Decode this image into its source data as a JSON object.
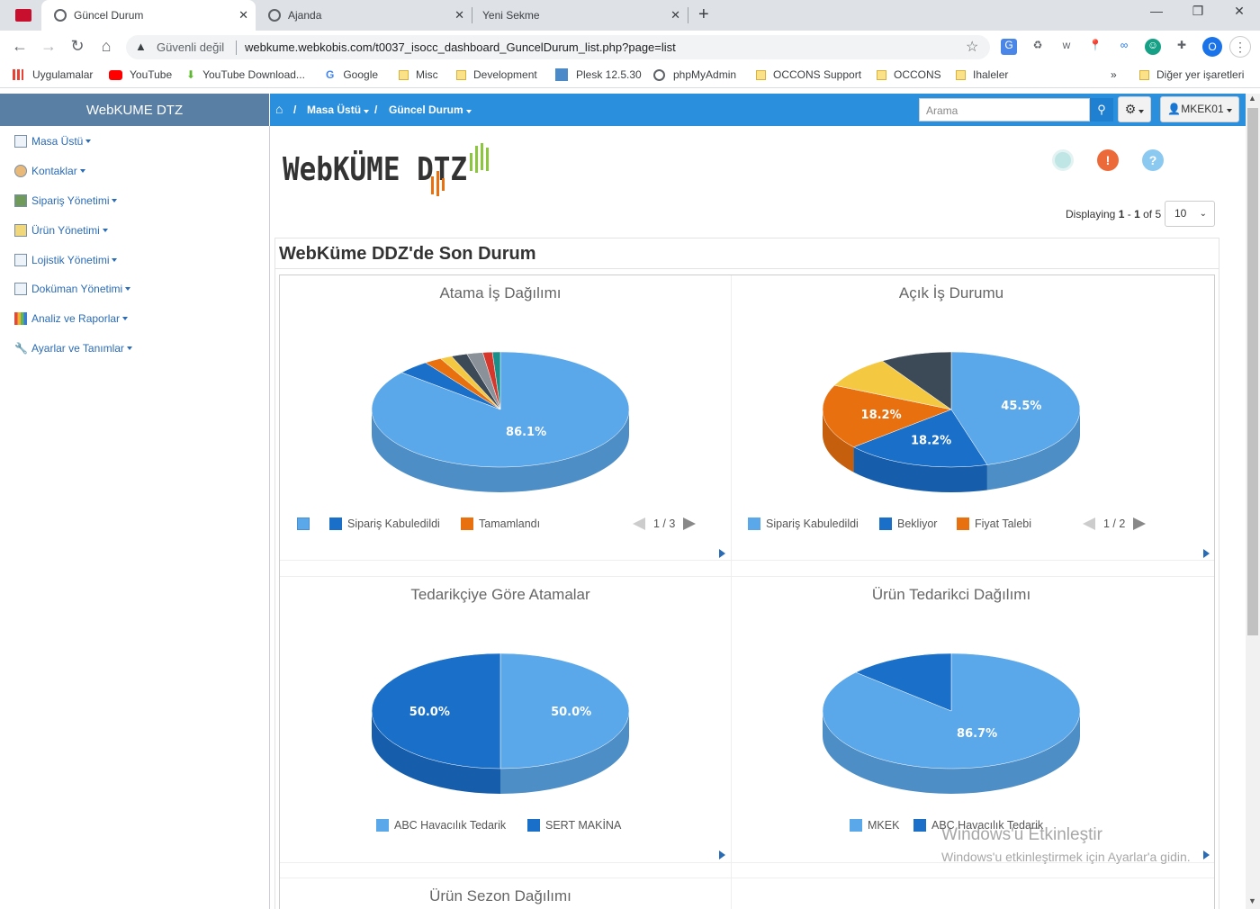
{
  "browser": {
    "tabs": [
      {
        "label": "Güncel Durum",
        "active": true
      },
      {
        "label": "Ajanda",
        "active": false
      },
      {
        "label": "Yeni Sekme",
        "active": false
      }
    ],
    "security_label": "Güvenli değil",
    "url": "webkume.webkobis.com/t0037_isocc_dashboard_GuncelDurum_list.php?page=list",
    "profile_initial": "O",
    "bookmarks": [
      "Uygulamalar",
      "YouTube",
      "YouTube Download...",
      "Google",
      "Misc",
      "Development",
      "Plesk 12.5.30",
      "phpMyAdmin",
      "OCCONS Support",
      "OCCONS",
      "Ihaleler"
    ],
    "other_bookmarks": "Diğer yer işaretleri",
    "more_bookmarks": "»"
  },
  "app": {
    "brand": "WebKUME DTZ",
    "sidebar": [
      {
        "label": "Masa Üstü"
      },
      {
        "label": "Kontaklar"
      },
      {
        "label": "Sipariş Yönetimi"
      },
      {
        "label": "Ürün Yönetimi"
      },
      {
        "label": "Lojistik Yönetimi"
      },
      {
        "label": "Doküman Yönetimi"
      },
      {
        "label": "Analiz ve Raporlar"
      },
      {
        "label": "Ayarlar ve Tanımlar"
      }
    ],
    "breadcrumb": {
      "sep": "/",
      "item1": "Masa Üstü",
      "item2": "Güncel Durum"
    },
    "search_placeholder": "Arama",
    "user": "MKEK01",
    "logo_text": "WebKÜME DTZ",
    "display": {
      "prefix": "Displaying",
      "from": "1",
      "dash": "-",
      "to": "1",
      "of": "of 5"
    },
    "per_page": "10",
    "panel_title": "WebKüme DDZ'de Son Durum"
  },
  "colors": {
    "light_blue": "#5aa7ea",
    "blue": "#1a6fc9",
    "orange": "#e8700f",
    "yellow": "#f5c842",
    "dark": "#3c4a57",
    "gray": "#8a9199",
    "red": "#d6372c",
    "teal": "#1a8f8a"
  },
  "chart_data": [
    {
      "type": "pie",
      "title": "Atama İş Dağılımı",
      "labels_visible": [
        "86.1%"
      ],
      "slices": [
        {
          "value": 86.1,
          "color": "#5aa7ea"
        },
        {
          "value": 4.0,
          "color": "#1a6fc9"
        },
        {
          "value": 2.2,
          "color": "#e8700f"
        },
        {
          "value": 1.5,
          "color": "#f5c842"
        },
        {
          "value": 2.0,
          "color": "#3c4a57"
        },
        {
          "value": 2.0,
          "color": "#8a9199"
        },
        {
          "value": 1.2,
          "color": "#d6372c"
        },
        {
          "value": 1.0,
          "color": "#1a8f8a"
        }
      ],
      "legend": [
        {
          "name": "",
          "color": "#5aa7ea"
        },
        {
          "name": "Sipariş Kabuledildi",
          "color": "#1a6fc9"
        },
        {
          "name": "Tamamlandı",
          "color": "#e8700f"
        }
      ],
      "legend_page": "1 / 3"
    },
    {
      "type": "pie",
      "title": "Açık İş Durumu",
      "labels_visible": [
        "45.5%",
        "18.2%",
        "18.2%"
      ],
      "slices": [
        {
          "value": 45.5,
          "color": "#5aa7ea",
          "label": "45.5%"
        },
        {
          "value": 18.2,
          "color": "#1a6fc9",
          "label": "18.2%"
        },
        {
          "value": 18.2,
          "color": "#e8700f",
          "label": "18.2%"
        },
        {
          "value": 9.1,
          "color": "#f5c842"
        },
        {
          "value": 9.0,
          "color": "#3c4a57"
        }
      ],
      "legend": [
        {
          "name": "Sipariş Kabuledildi",
          "color": "#5aa7ea"
        },
        {
          "name": "Bekliyor",
          "color": "#1a6fc9"
        },
        {
          "name": "Fiyat Talebi",
          "color": "#e8700f"
        }
      ],
      "legend_page": "1 / 2"
    },
    {
      "type": "pie",
      "title": "Tedarikçiye Göre Atamalar",
      "slices": [
        {
          "value": 50.0,
          "color": "#5aa7ea",
          "label": "50.0%"
        },
        {
          "value": 50.0,
          "color": "#1a6fc9",
          "label": "50.0%"
        }
      ],
      "legend": [
        {
          "name": "ABC Havacılık Tedarik",
          "color": "#5aa7ea"
        },
        {
          "name": "SERT MAKİNA",
          "color": "#1a6fc9"
        }
      ]
    },
    {
      "type": "pie",
      "title": "Ürün Tedarikci Dağılımı",
      "slices": [
        {
          "value": 86.7,
          "color": "#5aa7ea",
          "label": "86.7%"
        },
        {
          "value": 13.3,
          "color": "#1a6fc9"
        }
      ],
      "legend": [
        {
          "name": "MKEK",
          "color": "#5aa7ea"
        },
        {
          "name": "ABC Havacılık Tedarik",
          "color": "#1a6fc9"
        }
      ]
    },
    {
      "type": "pie",
      "title": "Ürün Sezon Dağılımı",
      "slices": []
    }
  ],
  "watermark": {
    "line1": "Windows'u Etkinleştir",
    "line2": "Windows'u etkinleştirmek için Ayarlar'a gidin."
  }
}
